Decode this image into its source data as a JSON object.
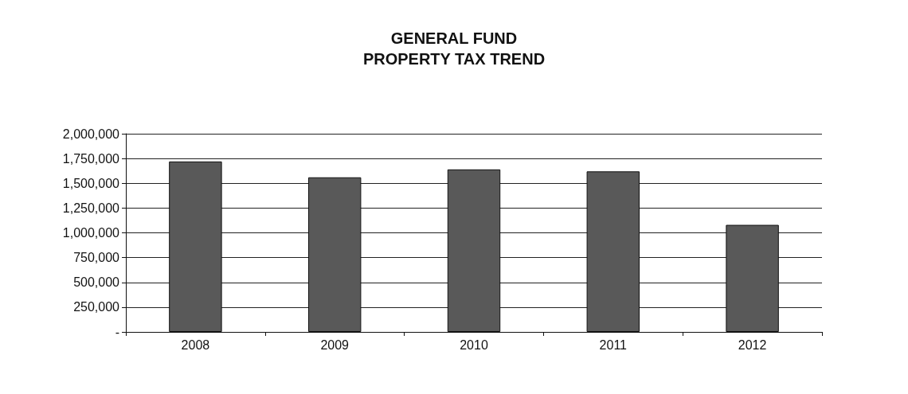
{
  "chart_data": {
    "type": "bar",
    "title": "GENERAL FUND\nPROPERTY TAX TREND",
    "categories": [
      "2008",
      "2009",
      "2010",
      "2011",
      "2012"
    ],
    "values": [
      1720000,
      1560000,
      1640000,
      1620000,
      1080000
    ],
    "color": "#595959",
    "ylim": [
      0,
      2000000
    ],
    "yticks": [
      {
        "value": 0,
        "label": "-"
      },
      {
        "value": 250000,
        "label": "250,000"
      },
      {
        "value": 500000,
        "label": "500,000"
      },
      {
        "value": 750000,
        "label": "750,000"
      },
      {
        "value": 1000000,
        "label": "1,000,000"
      },
      {
        "value": 1250000,
        "label": "1,250,000"
      },
      {
        "value": 1500000,
        "label": "1,500,000"
      },
      {
        "value": 1750000,
        "label": "1,750,000"
      },
      {
        "value": 2000000,
        "label": "2,000,000"
      }
    ],
    "grid": "y"
  }
}
